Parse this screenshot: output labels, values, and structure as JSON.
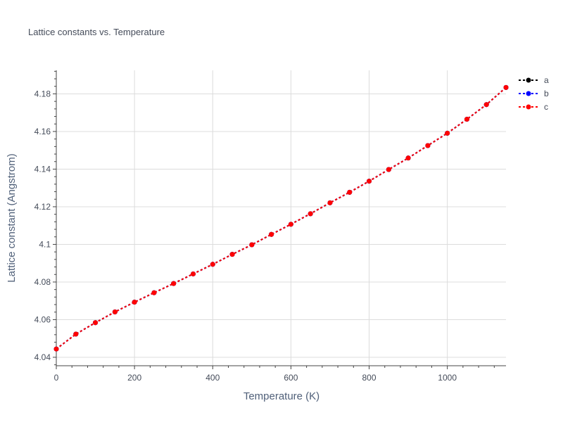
{
  "chart_data": {
    "type": "line",
    "title": "Lattice constants vs. Temperature",
    "xlabel": "Temperature (K)",
    "ylabel": "Lattice constant (Angstrom)",
    "xlim": [
      0,
      1150
    ],
    "ylim": [
      4.0355,
      4.1925
    ],
    "x_ticks": [
      0,
      200,
      400,
      600,
      800,
      1000
    ],
    "x_tick_labels": [
      "0",
      "200",
      "400",
      "600",
      "800",
      "1000"
    ],
    "y_ticks": [
      4.04,
      4.06,
      4.08,
      4.1,
      4.12,
      4.14,
      4.16,
      4.18
    ],
    "y_tick_labels": [
      "4.04",
      "4.06",
      "4.08",
      "4.1",
      "4.12",
      "4.14",
      "4.16",
      "4.18"
    ],
    "grid": true,
    "legend_position": "top-right",
    "x": [
      0,
      50,
      100,
      150,
      200,
      250,
      300,
      350,
      400,
      450,
      500,
      550,
      600,
      650,
      700,
      750,
      800,
      850,
      900,
      950,
      1000,
      1050,
      1100,
      1150
    ],
    "series": [
      {
        "name": "a",
        "color": "#000000",
        "values": [
          4.0444,
          4.0523,
          4.0584,
          4.0641,
          4.0693,
          4.0743,
          4.0792,
          4.0843,
          4.0894,
          4.0947,
          4.0998,
          4.1053,
          4.1107,
          4.1163,
          4.1221,
          4.1277,
          4.1336,
          4.1398,
          4.1459,
          4.1525,
          4.1591,
          4.1665,
          4.1743,
          4.1834
        ]
      },
      {
        "name": "b",
        "color": "#0000ff",
        "values": [
          4.0444,
          4.0523,
          4.0584,
          4.0641,
          4.0693,
          4.0743,
          4.0792,
          4.0843,
          4.0894,
          4.0947,
          4.0998,
          4.1053,
          4.1107,
          4.1163,
          4.1221,
          4.1277,
          4.1336,
          4.1398,
          4.1459,
          4.1525,
          4.1591,
          4.1665,
          4.1743,
          4.1834
        ]
      },
      {
        "name": "c",
        "color": "#ff0000",
        "values": [
          4.0444,
          4.0523,
          4.0584,
          4.0641,
          4.0693,
          4.0743,
          4.0792,
          4.0843,
          4.0894,
          4.0947,
          4.0998,
          4.1053,
          4.1107,
          4.1163,
          4.1221,
          4.1277,
          4.1336,
          4.1398,
          4.1459,
          4.1525,
          4.1591,
          4.1665,
          4.1743,
          4.1834
        ]
      }
    ]
  }
}
